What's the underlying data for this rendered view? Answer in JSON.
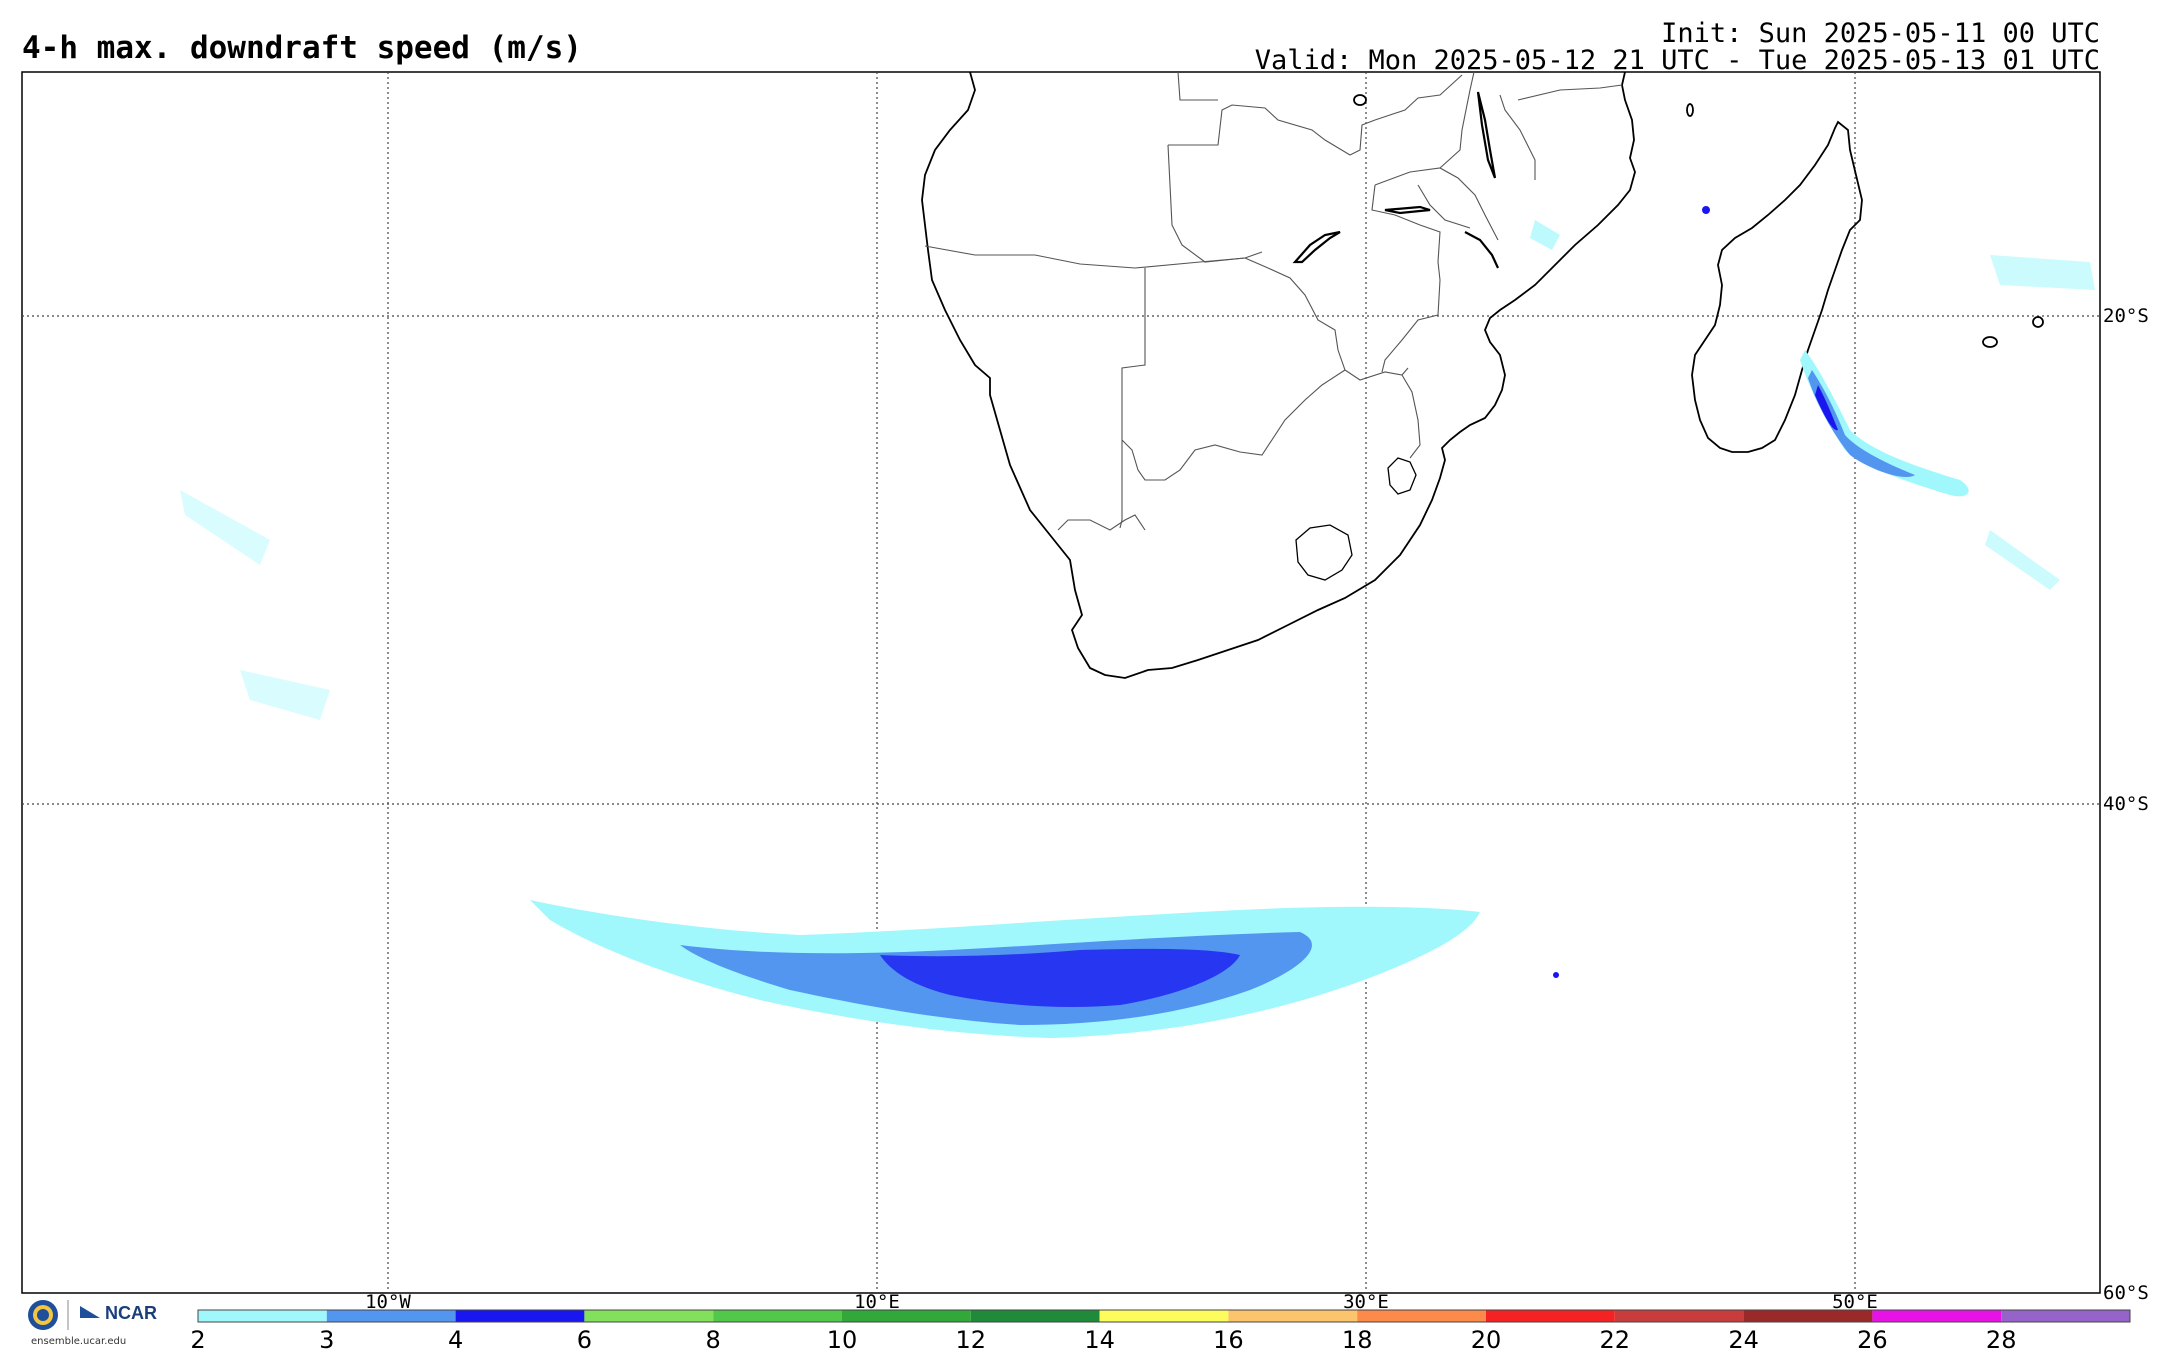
{
  "header": {
    "title": "4-h max. downdraft speed (m/s)",
    "init": "Init: Sun 2025-05-11 00 UTC",
    "valid": "Valid: Mon 2025-05-12 21 UTC - Tue 2025-05-13 01 UTC"
  },
  "map": {
    "lon_labels": [
      "10°W",
      "10°E",
      "30°E",
      "50°E"
    ],
    "lat_labels": [
      "20°S",
      "40°S",
      "60°S"
    ],
    "grid": "dotted"
  },
  "colorbar": {
    "ticks": [
      "2",
      "3",
      "4",
      "6",
      "8",
      "10",
      "12",
      "14",
      "16",
      "18",
      "20",
      "22",
      "24",
      "26",
      "28"
    ],
    "colors": [
      "#a0f8fc",
      "#5296f0",
      "#1a16f0",
      "#82e05c",
      "#52c84a",
      "#32a83a",
      "#1e8a3a",
      "#fcfc5c",
      "#fcc46c",
      "#fc8a4a",
      "#f42222",
      "#c83c3c",
      "#9a2a2a",
      "#e612e6",
      "#9664c8"
    ]
  },
  "footer": {
    "org": "NCAR",
    "url": "ensemble.ucar.edu",
    "logo_icon": "nsf-logo-icon"
  }
}
